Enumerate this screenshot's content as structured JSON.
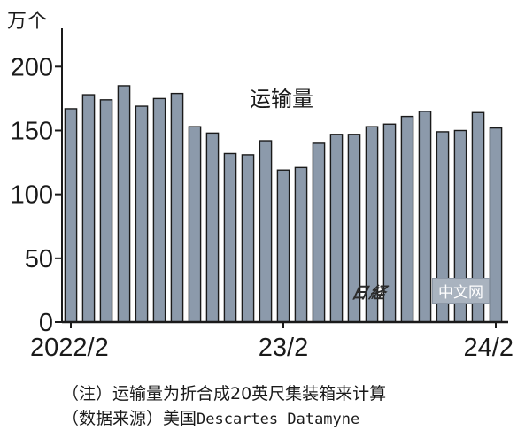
{
  "header": {
    "unit": "万个"
  },
  "watermark": {
    "logo_text": "日経",
    "site": "中文网"
  },
  "notes": {
    "line1": "（注）运输量为折合成20英尺集装箱来计算",
    "line2_prefix": "（数据来源）美国",
    "line2_source": "Descartes Datamyne"
  },
  "colors": {
    "bar_fill": "#8c9aab",
    "bar_stroke": "#1a1a1a",
    "axis": "#1a1a1a",
    "grid": "#c8c8c8"
  },
  "chart_data": {
    "type": "bar",
    "title": "运输量",
    "ylabel": "万个",
    "ylim": [
      0,
      230
    ],
    "yticks": [
      0,
      50,
      100,
      150,
      200
    ],
    "grid": false,
    "x_tick_labels": [
      {
        "index": 0,
        "label": "2022/2"
      },
      {
        "index": 12,
        "label": "23/2"
      },
      {
        "index": 24,
        "label": "24/2"
      }
    ],
    "categories": [
      "2022/2",
      "2022/3",
      "2022/4",
      "2022/5",
      "2022/6",
      "2022/7",
      "2022/8",
      "2022/9",
      "2022/10",
      "2022/11",
      "2022/12",
      "2023/1",
      "2023/2",
      "2023/3",
      "2023/4",
      "2023/5",
      "2023/6",
      "2023/7",
      "2023/8",
      "2023/9",
      "2023/10",
      "2023/11",
      "2023/12",
      "2024/1",
      "2024/2"
    ],
    "values": [
      167,
      178,
      174,
      185,
      169,
      175,
      179,
      153,
      148,
      132,
      131,
      142,
      119,
      121,
      140,
      147,
      147,
      153,
      155,
      161,
      165,
      149,
      150,
      164,
      152
    ]
  }
}
